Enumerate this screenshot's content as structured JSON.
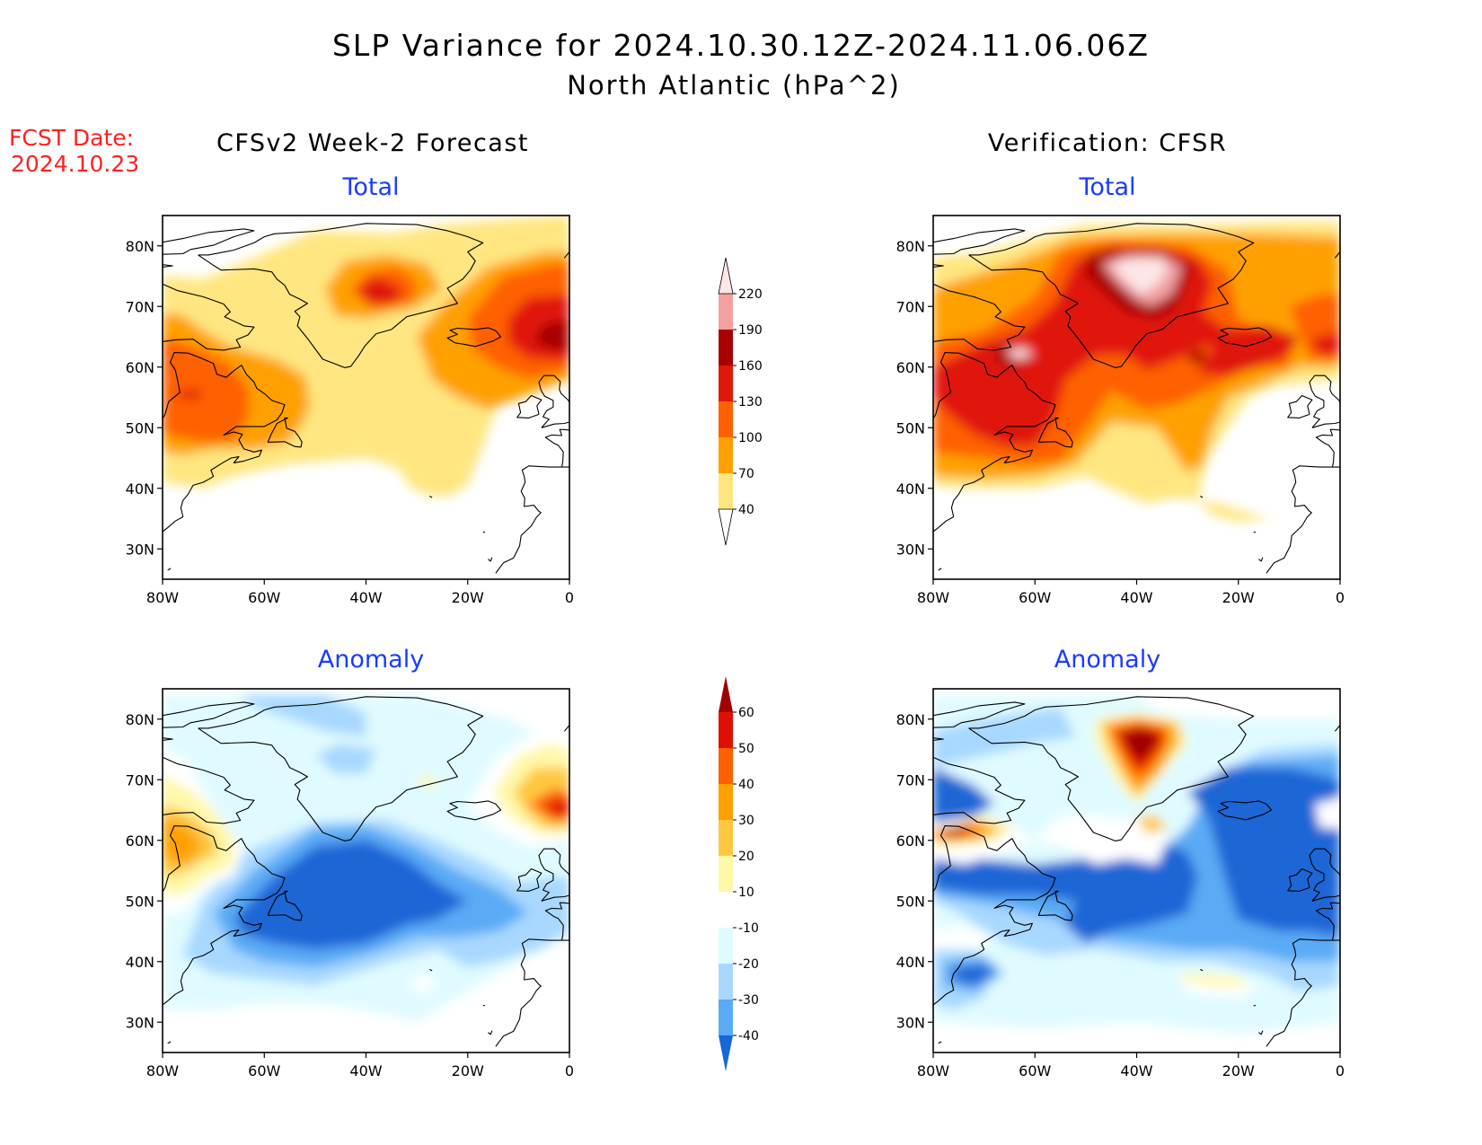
{
  "title_line1": "SLP Variance for 2024.10.30.12Z-2024.11.06.06Z",
  "title_line2": "North Atlantic (hPa^2)",
  "fcst_date_label": "FCST Date:",
  "fcst_date_value": "2024.10.23",
  "colors": {
    "title": "#000000",
    "fcst": "#ff2020",
    "panel_subtitle": "#1a3cff",
    "coast": "#000000"
  },
  "columns": {
    "forecast": "CFSv2 Week-2 Forecast",
    "verification": "Verification: CFSR"
  },
  "panels": {
    "fc_total": {
      "subtitle": "Total"
    },
    "vf_total": {
      "subtitle": "Total"
    },
    "fc_anom": {
      "subtitle": "Anomaly"
    },
    "vf_anom": {
      "subtitle": "Anomaly"
    }
  },
  "axes": {
    "lon_ticks": [
      "80W",
      "60W",
      "40W",
      "20W",
      "0"
    ],
    "lat_ticks": [
      "80N",
      "70N",
      "60N",
      "50N",
      "40N",
      "30N"
    ],
    "lon_range": [
      -80,
      0
    ],
    "lat_range": [
      25,
      85
    ]
  },
  "colorbars": {
    "total": {
      "labels": [
        "40",
        "70",
        "100",
        "130",
        "160",
        "190",
        "220"
      ],
      "levels": [
        40,
        70,
        100,
        130,
        160,
        190,
        220
      ],
      "colors": [
        "#ffe680",
        "#ffa000",
        "#ff6000",
        "#e01808",
        "#a80000",
        "#f2a0a0",
        "#fde6e6"
      ]
    },
    "anomaly": {
      "labels": [
        "60",
        "50",
        "40",
        "30",
        "20",
        "10",
        "-10",
        "-20",
        "-30",
        "-40"
      ],
      "levels": [
        60,
        50,
        40,
        30,
        20,
        10,
        -10,
        -20,
        -30,
        -40
      ],
      "colors": [
        "#a00000",
        "#e01000",
        "#ff6000",
        "#ffa000",
        "#ffc840",
        "#fff8a8",
        "#ffffff",
        "#e0fbff",
        "#a8d8ff",
        "#5aaaf5",
        "#1a66d6"
      ]
    }
  }
}
